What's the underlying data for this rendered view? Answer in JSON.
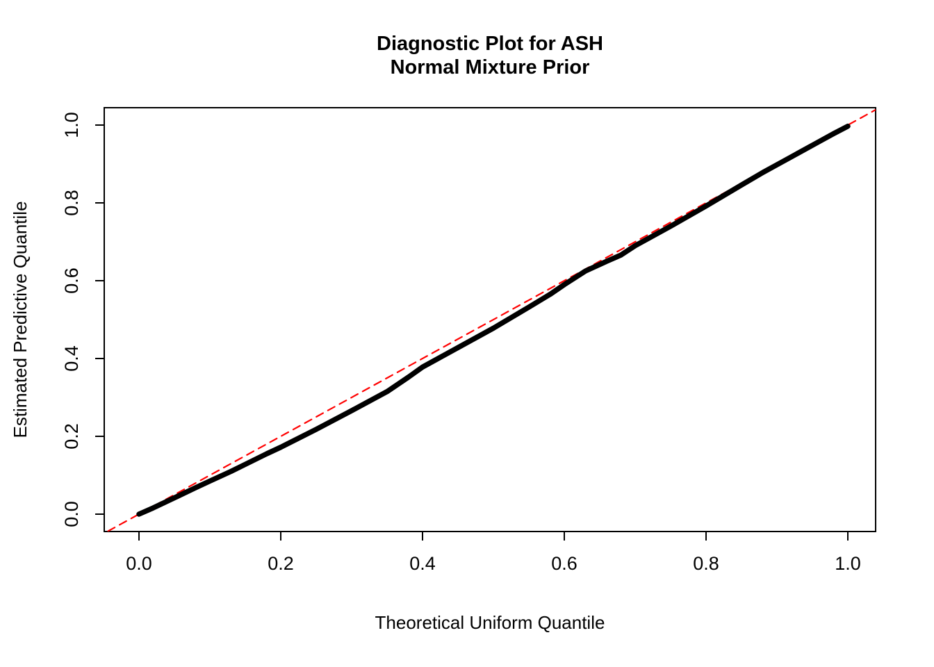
{
  "chart_data": {
    "type": "scatter",
    "title": "Diagnostic Plot for ASH",
    "subtitle": "Normal Mixture Prior",
    "xlabel": "Theoretical Uniform Quantile",
    "ylabel": "Estimated Predictive Quantile",
    "xlim": [
      -0.045,
      1.04
    ],
    "ylim": [
      -0.045,
      1.045
    ],
    "xticks": [
      "0.0",
      "0.2",
      "0.4",
      "0.6",
      "0.8",
      "1.0"
    ],
    "yticks": [
      "0.0",
      "0.2",
      "0.4",
      "0.6",
      "0.8",
      "1.0"
    ],
    "grid": false,
    "legend": "none",
    "colors": {
      "points": "#000000",
      "reference": "#FF0000",
      "box": "#000000"
    },
    "series": [
      {
        "name": "estimated-predictive-quantiles",
        "color": "#000000",
        "style": "thick-solid",
        "points": [
          [
            0.0,
            0.0
          ],
          [
            0.02,
            0.016
          ],
          [
            0.05,
            0.042
          ],
          [
            0.08,
            0.068
          ],
          [
            0.1,
            0.085
          ],
          [
            0.13,
            0.11
          ],
          [
            0.15,
            0.128
          ],
          [
            0.18,
            0.155
          ],
          [
            0.2,
            0.172
          ],
          [
            0.25,
            0.218
          ],
          [
            0.3,
            0.266
          ],
          [
            0.35,
            0.315
          ],
          [
            0.38,
            0.352
          ],
          [
            0.4,
            0.378
          ],
          [
            0.45,
            0.428
          ],
          [
            0.5,
            0.478
          ],
          [
            0.55,
            0.532
          ],
          [
            0.58,
            0.565
          ],
          [
            0.6,
            0.59
          ],
          [
            0.63,
            0.625
          ],
          [
            0.66,
            0.65
          ],
          [
            0.68,
            0.666
          ],
          [
            0.7,
            0.69
          ],
          [
            0.75,
            0.74
          ],
          [
            0.8,
            0.792
          ],
          [
            0.85,
            0.846
          ],
          [
            0.88,
            0.878
          ],
          [
            0.9,
            0.898
          ],
          [
            0.93,
            0.928
          ],
          [
            0.96,
            0.958
          ],
          [
            0.98,
            0.978
          ],
          [
            1.0,
            0.997
          ]
        ]
      },
      {
        "name": "identity-reference-line",
        "color": "#FF0000",
        "style": "dashed",
        "points": [
          [
            -0.06,
            -0.06
          ],
          [
            1.06,
            1.06
          ]
        ]
      }
    ]
  }
}
